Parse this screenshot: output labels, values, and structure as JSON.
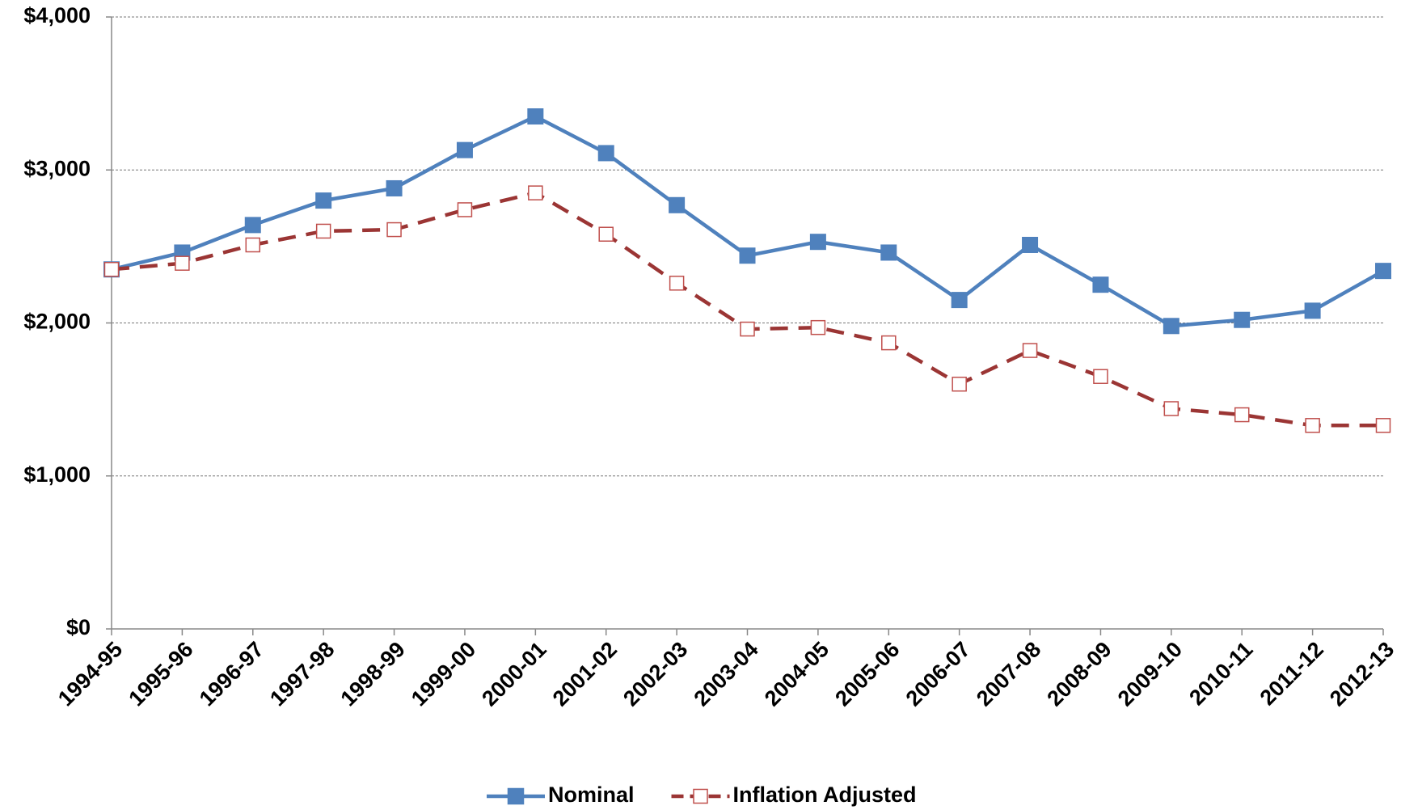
{
  "chart_data": {
    "type": "line",
    "categories": [
      "1994-95",
      "1995-96",
      "1996-97",
      "1997-98",
      "1998-99",
      "1999-00",
      "2000-01",
      "2001-02",
      "2002-03",
      "2003-04",
      "2004-05",
      "2005-06",
      "2006-07",
      "2007-08",
      "2008-09",
      "2009-10",
      "2010-11",
      "2011-12",
      "2012-13"
    ],
    "series": [
      {
        "name": "Nominal",
        "color": "#4f81bd",
        "style": "solid",
        "marker": "filled-square",
        "values": [
          2350,
          2460,
          2640,
          2800,
          2880,
          3130,
          3350,
          3110,
          2770,
          2440,
          2530,
          2460,
          2150,
          2510,
          2250,
          1980,
          2020,
          2080,
          2340
        ]
      },
      {
        "name": "Inflation Adjusted",
        "color": "#9b3534",
        "style": "dashed",
        "marker": "hollow-square",
        "values": [
          2350,
          2390,
          2510,
          2600,
          2610,
          2740,
          2850,
          2580,
          2260,
          1960,
          1970,
          1870,
          1600,
          1820,
          1650,
          1440,
          1400,
          1330,
          1330
        ]
      }
    ],
    "ylim": [
      0,
      4000
    ],
    "yticks": [
      {
        "value": 0,
        "label": "$0"
      },
      {
        "value": 1000,
        "label": "$1,000"
      },
      {
        "value": 2000,
        "label": "$2,000"
      },
      {
        "value": 3000,
        "label": "$3,000"
      },
      {
        "value": 4000,
        "label": "$4,000"
      }
    ],
    "grid": true,
    "legend": "bottom"
  }
}
